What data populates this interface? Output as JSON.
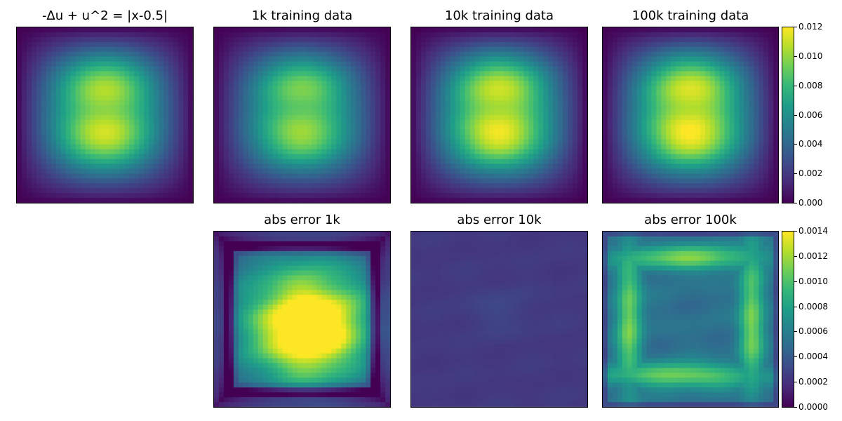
{
  "chart_data": [
    {
      "type": "heatmap",
      "title": "-Δu + u^2 = |x-0.5|",
      "field": "exact",
      "peak": 0.0117,
      "ylim": [
        0,
        0.012
      ]
    },
    {
      "type": "heatmap",
      "title": "1k training data",
      "field": "pred",
      "peak": 0.0108,
      "ylim": [
        0,
        0.012
      ]
    },
    {
      "type": "heatmap",
      "title": "10k training data",
      "field": "pred",
      "peak": 0.0125,
      "ylim": [
        0,
        0.012
      ]
    },
    {
      "type": "heatmap",
      "title": "100k training data",
      "field": "pred",
      "peak": 0.0128,
      "ylim": [
        0,
        0.012
      ]
    },
    {
      "type": "heatmap",
      "title": "abs error 1k",
      "field": "err1k",
      "peak": 0.0016,
      "ylim": [
        0,
        0.0014
      ]
    },
    {
      "type": "heatmap",
      "title": "abs error 10k",
      "field": "err10k",
      "peak": 0.0006,
      "ylim": [
        0,
        0.0014
      ]
    },
    {
      "type": "heatmap",
      "title": "abs error 100k",
      "field": "err100k",
      "peak": 0.0012,
      "ylim": [
        0,
        0.0014
      ]
    }
  ],
  "colorbars": [
    {
      "ticks": [
        "0.000",
        "0.002",
        "0.004",
        "0.006",
        "0.008",
        "0.010",
        "0.012"
      ],
      "ylim": [
        0,
        0.012
      ]
    },
    {
      "ticks": [
        "0.0000",
        "0.0002",
        "0.0004",
        "0.0006",
        "0.0008",
        "0.0010",
        "0.0012",
        "0.0014"
      ],
      "ylim": [
        0,
        0.0014
      ]
    }
  ],
  "colormap": [
    "#440154",
    "#482878",
    "#3e4989",
    "#31688e",
    "#26828e",
    "#1f9e89",
    "#35b779",
    "#6ece58",
    "#b5de2b",
    "#fde725"
  ]
}
